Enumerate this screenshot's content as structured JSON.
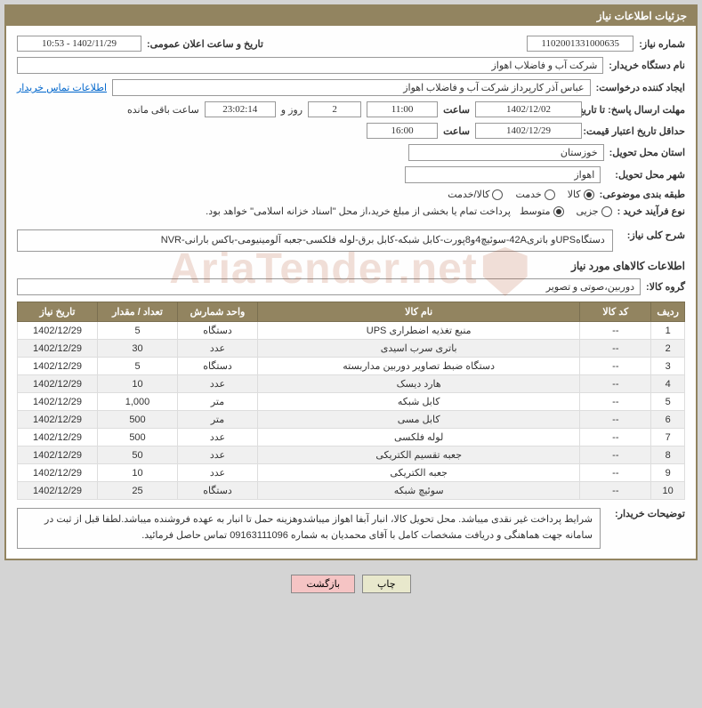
{
  "panel_title": "جزئیات اطلاعات نیاز",
  "fields": {
    "need_no_label": "شماره نیاز:",
    "need_no": "1102001331000635",
    "announce_label": "تاریخ و ساعت اعلان عمومی:",
    "announce": "1402/11/29 - 10:53",
    "buyer_org_label": "نام دستگاه خریدار:",
    "buyer_org": "شرکت آب و فاضلاب اهواز",
    "requester_label": "ایجاد کننده درخواست:",
    "requester": "عباس آذر کارپرداز شرکت آب و فاضلاب اهواز",
    "contact_link": "اطلاعات تماس خریدار",
    "resp_deadline_label": "مهلت ارسال پاسخ: تا تاریخ:",
    "resp_date": "1402/12/02",
    "time_label": "ساعت",
    "resp_time": "11:00",
    "days_remain": "2",
    "days_text": "روز و",
    "time_remain": "23:02:14",
    "remain_text": "ساعت باقی مانده",
    "valid_deadline_label": "حداقل تاریخ اعتبار قیمت: تا تاریخ:",
    "valid_date": "1402/12/29",
    "valid_time": "16:00",
    "province_label": "استان محل تحویل:",
    "province": "خوزستان",
    "city_label": "شهر محل تحویل:",
    "city": "اهواز",
    "subject_class_label": "طبقه بندی موضوعی:",
    "class_opts": [
      "کالا",
      "خدمت",
      "کالا/خدمت"
    ],
    "class_sel": 0,
    "proc_type_label": "نوع فرآیند خرید :",
    "proc_opts": [
      "جزیی",
      "متوسط"
    ],
    "proc_sel": 1,
    "proc_note": "پرداخت تمام یا بخشی از مبلغ خرید،از محل \"اسناد خزانه اسلامی\" خواهد بود.",
    "overall_label": "شرح کلی نیاز:",
    "overall_desc": "دستگاهUPSو باتری42A-سوئیچ4و8پورت-کابل شبکه-کابل برق-لوله فلکسی-جعبه آلومینیومی-باکس بارانی-NVR"
  },
  "goods_section_title": "اطلاعات کالاهای مورد نیاز",
  "group_label": "گروه کالا:",
  "group_value": "دوربین،صوتی و تصویر",
  "table": {
    "headers": [
      "ردیف",
      "کد کالا",
      "نام کالا",
      "واحد شمارش",
      "تعداد / مقدار",
      "تاریخ نیاز"
    ],
    "rows": [
      [
        "1",
        "--",
        "منبع تغذیه اضطراری UPS",
        "دستگاه",
        "5",
        "1402/12/29"
      ],
      [
        "2",
        "--",
        "باتری سرب اسیدی",
        "عدد",
        "30",
        "1402/12/29"
      ],
      [
        "3",
        "--",
        "دستگاه ضبط تصاویر دوربین مداربسته",
        "دستگاه",
        "5",
        "1402/12/29"
      ],
      [
        "4",
        "--",
        "هارد دیسک",
        "عدد",
        "10",
        "1402/12/29"
      ],
      [
        "5",
        "--",
        "کابل شبکه",
        "متر",
        "1,000",
        "1402/12/29"
      ],
      [
        "6",
        "--",
        "کابل مسی",
        "متر",
        "500",
        "1402/12/29"
      ],
      [
        "7",
        "--",
        "لوله فلکسی",
        "عدد",
        "500",
        "1402/12/29"
      ],
      [
        "8",
        "--",
        "جعبه تقسیم الکتریکی",
        "عدد",
        "50",
        "1402/12/29"
      ],
      [
        "9",
        "--",
        "جعبه الکتریکی",
        "عدد",
        "10",
        "1402/12/29"
      ],
      [
        "10",
        "--",
        "سوئیچ شبکه",
        "دستگاه",
        "25",
        "1402/12/29"
      ]
    ]
  },
  "buyer_notes_label": "توضیحات خریدار:",
  "buyer_notes": "شرایط پرداخت غیر نقدی میباشد. محل تحویل کالا، انبار آبفا اهواز میباشدوهزینه حمل تا انبار به عهده فروشنده میباشد.لطفا قبل از ثبت در سامانه جهت هماهنگی و دریافت مشخصات کامل با آقای  محمدیان به شماره 09163111096 تماس حاصل فرمائید.",
  "btn_print": "چاپ",
  "btn_back": "بازگشت",
  "watermark": "AriaTender.net",
  "colors": {
    "header_bg": "#928460",
    "header_fg": "#ffffff",
    "page_bg": "#d4d4d4",
    "panel_bg": "#fefefe",
    "link": "#0066cc",
    "row_even": "#f0f0f0",
    "row_odd": "#ffffff",
    "btn_print_bg": "#e8e8cc",
    "btn_back_bg": "#f5c4c4"
  }
}
